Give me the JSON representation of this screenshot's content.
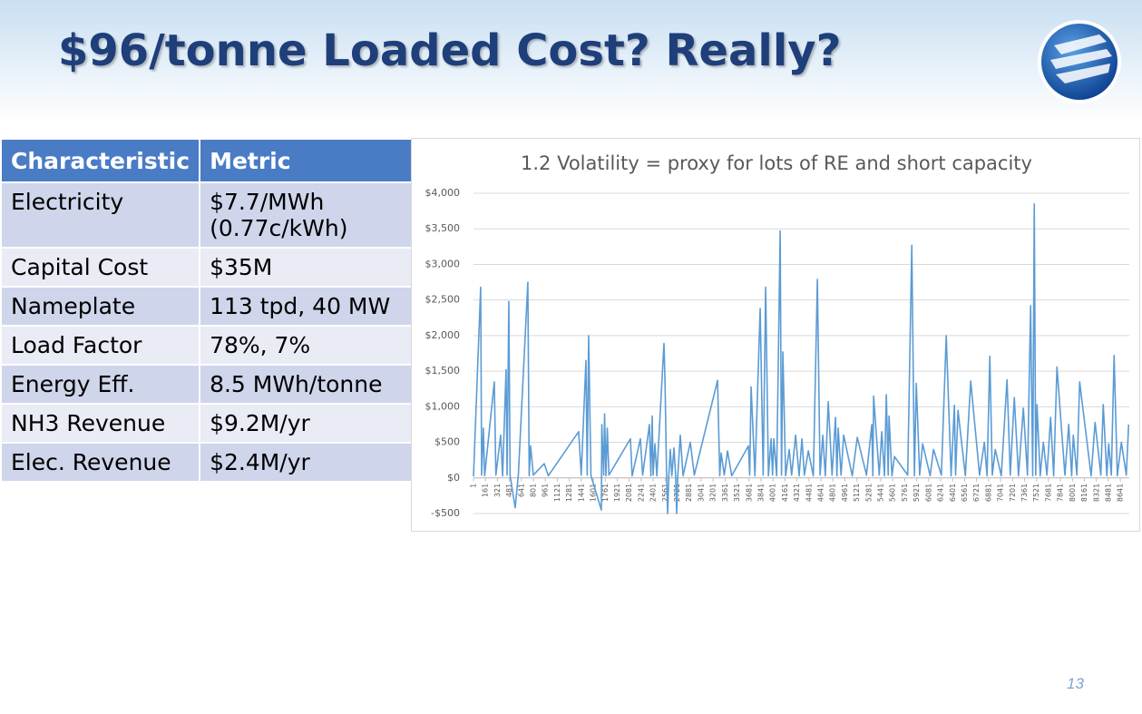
{
  "header": {
    "title": "$96/tonne Loaded Cost? Really?"
  },
  "table": {
    "columns": [
      "Characteristic",
      "Metric"
    ],
    "rows": [
      [
        "Electricity",
        "$7.7/MWh (0.77c/kWh)"
      ],
      [
        "Capital Cost",
        "$35M"
      ],
      [
        "Nameplate",
        "113 tpd, 40 MW"
      ],
      [
        "Load Factor",
        "78%, 7%"
      ],
      [
        "Energy Eff.",
        "8.5 MWh/tonne"
      ],
      [
        "NH3 Revenue",
        "$9.2M/yr"
      ],
      [
        "Elec. Revenue",
        "$2.4M/yr"
      ]
    ]
  },
  "chart_data": {
    "type": "line",
    "title": "1.2 Volatility = proxy for lots of RE and short capacity",
    "color": "#5b9bd5",
    "grid": true,
    "x": [
      1,
      97,
      110,
      133,
      150,
      279,
      300,
      364,
      390,
      436,
      450,
      473,
      490,
      558,
      600,
      727,
      745,
      764,
      800,
      946,
      1000,
      1406,
      1440,
      1503,
      1520,
      1539,
      1570,
      1709,
      1715,
      1740,
      1752,
      1770,
      1788,
      1810,
      2097,
      2120,
      2230,
      2260,
      2351,
      2370,
      2388,
      2400,
      2424,
      2450,
      2545,
      2560,
      2580,
      2594,
      2610,
      2630,
      2650,
      2679,
      2700,
      2715,
      2730,
      2763,
      2800,
      2897,
      2950,
      3261,
      3290,
      3309,
      3350,
      3394,
      3450,
      3673,
      3690,
      3709,
      3760,
      3830,
      3870,
      3903,
      3940,
      3976,
      3995,
      4012,
      4050,
      4097,
      4115,
      4133,
      4170,
      4218,
      4250,
      4303,
      4350,
      4388,
      4420,
      4473,
      4540,
      4594,
      4630,
      4666,
      4700,
      4739,
      4790,
      4836,
      4855,
      4872,
      4910,
      4945,
      5060,
      5127,
      5250,
      5321,
      5335,
      5345,
      5420,
      5454,
      5490,
      5515,
      5540,
      5551,
      5590,
      5624,
      5800,
      5855,
      5890,
      5915,
      5960,
      6000,
      6100,
      6145,
      6250,
      6315,
      6380,
      6424,
      6440,
      6472,
      6570,
      6642,
      6760,
      6824,
      6860,
      6897,
      6930,
      6970,
      7050,
      7127,
      7170,
      7224,
      7280,
      7345,
      7400,
      7442,
      7470,
      7491,
      7510,
      7527,
      7570,
      7612,
      7660,
      7709,
      7750,
      7794,
      7900,
      7951,
      7990,
      8012,
      8060,
      8097,
      8250,
      8303,
      8380,
      8412,
      8460,
      8485,
      8520,
      8557,
      8600,
      8654,
      8720,
      8751
    ],
    "values": [
      20,
      2680,
      40,
      700,
      30,
      1350,
      40,
      600,
      30,
      1520,
      40,
      2480,
      30,
      -420,
      40,
      2750,
      30,
      450,
      40,
      200,
      30,
      650,
      40,
      1650,
      40,
      2000,
      30,
      -450,
      750,
      40,
      900,
      30,
      700,
      40,
      550,
      30,
      550,
      40,
      750,
      30,
      870,
      40,
      480,
      30,
      1890,
      1300,
      30,
      -500,
      40,
      400,
      30,
      420,
      40,
      -500,
      40,
      600,
      30,
      500,
      40,
      1370,
      30,
      350,
      40,
      380,
      30,
      450,
      40,
      1280,
      30,
      2380,
      40,
      2680,
      30,
      550,
      40,
      550,
      30,
      3470,
      40,
      1770,
      30,
      400,
      40,
      600,
      30,
      550,
      40,
      380,
      30,
      2790,
      40,
      600,
      30,
      1070,
      40,
      850,
      30,
      700,
      40,
      600,
      30,
      570,
      40,
      750,
      30,
      1150,
      40,
      650,
      30,
      1170,
      40,
      870,
      30,
      300,
      40,
      3270,
      30,
      1330,
      40,
      480,
      30,
      400,
      40,
      2000,
      30,
      1020,
      40,
      950,
      30,
      1360,
      40,
      500,
      30,
      1710,
      40,
      400,
      30,
      1380,
      40,
      1130,
      30,
      980,
      40,
      2420,
      30,
      3850,
      40,
      1030,
      30,
      500,
      40,
      850,
      30,
      1560,
      40,
      750,
      30,
      600,
      40,
      1350,
      30,
      780,
      40,
      1030,
      30,
      480,
      40,
      1720,
      30,
      500,
      40,
      750
    ],
    "xlim": [
      1,
      8760
    ],
    "xticks": [
      1,
      161,
      321,
      481,
      641,
      801,
      961,
      1121,
      1281,
      1441,
      1601,
      1761,
      1921,
      2081,
      2241,
      2401,
      2561,
      2721,
      2881,
      3041,
      3201,
      3361,
      3521,
      3681,
      3841,
      4001,
      4161,
      4321,
      4481,
      4641,
      4801,
      4961,
      5121,
      5281,
      5441,
      5601,
      5761,
      5921,
      6081,
      6241,
      6401,
      6561,
      6721,
      6881,
      7041,
      7201,
      7361,
      7521,
      7681,
      7841,
      8001,
      8161,
      8321,
      8481,
      8641
    ],
    "ylim": [
      -500,
      4000
    ],
    "yticks": [
      {
        "value": -500,
        "label": "-$500"
      },
      {
        "value": 0,
        "label": "$0"
      },
      {
        "value": 500,
        "label": "$500"
      },
      {
        "value": 1000,
        "label": "$1,000"
      },
      {
        "value": 1500,
        "label": "$1,500"
      },
      {
        "value": 2000,
        "label": "$2,000"
      },
      {
        "value": 2500,
        "label": "$2,500"
      },
      {
        "value": 3000,
        "label": "$3,000"
      },
      {
        "value": 3500,
        "label": "$3,500"
      },
      {
        "value": 4000,
        "label": "$4,000"
      }
    ]
  },
  "footer": {
    "page_number": "13"
  }
}
